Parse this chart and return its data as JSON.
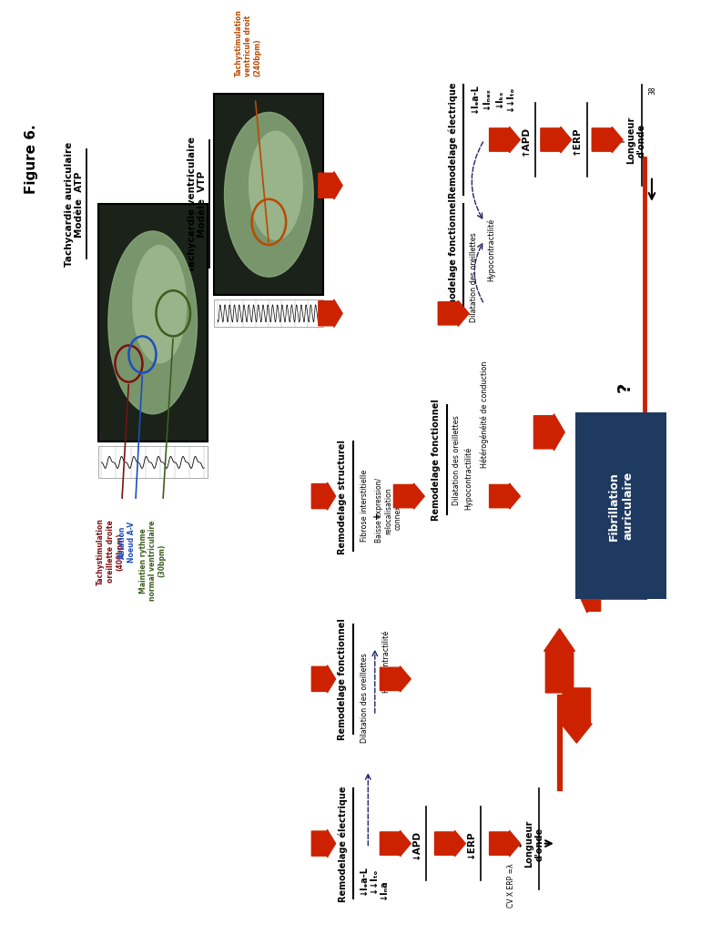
{
  "bg_color": "#ffffff",
  "fig_width": 7.51,
  "fig_height": 10.04,
  "title": "Figure 6.",
  "subtitle_left": "Tachycardie auriculaire\nModèle  ATP",
  "subtitle_right": "Tachycardie ventriculaire\nModèle  VTP",
  "label_orange": "Tachystimulation\nventricule droit\n(240bpm)",
  "label_dark_red": "Tachystimulation\noreillette droite\n(400bpm)",
  "label_blue": "Ablation\nNoeud A-V",
  "label_green": "Maintien rythme\nnormal ventriculaire\n(30bpm)",
  "color_orange": "#B84A00",
  "color_dark_red": "#7B1010",
  "color_blue": "#1A4FBF",
  "color_green": "#3B5E1E",
  "color_red": "#CC2200",
  "color_box": "#1E3A60",
  "color_box_text": "#ffffff",
  "color_black": "#000000",
  "remo_elec_left": "Remodelage électrique",
  "remo_fonc_left": "Remodelage fonctionnel",
  "remo_elec_right": "Remodelage électrique",
  "remo_fonc_right": "Remodelage fonctionnel",
  "remo_struct": "Remodelage structurel",
  "box_text": "Fibrillation\nauriculaire",
  "ica_l": "↓Iₑa-L",
  "ito_left": "↓↓Iₜₒ",
  "ina": "↓Iₙa",
  "apd_left": "↓APD",
  "erp_left": "↓ERP",
  "cv_erp": "CV X ERP =λ",
  "longueur_left": "↓\nLongueur\nd'onde",
  "ica_l_r": "↓Iₑa-L",
  "incx": "↓Iₙₑₓ",
  "iks": "↓Iₖₛ",
  "ito_right": "↓↓Iₜₒ",
  "apd_right": "↑APD",
  "erp_right": "↑ERP",
  "longueur_right": "↑\nLongueur\nd'onde",
  "dilatation_left": "Dilatation des oreillettes",
  "hypo_left": "Hypocontractilité",
  "fibrose": "Fibrose interstitielle",
  "baisse": "Baisse expression/\nrelocalisation\nconnexines",
  "plus": "+",
  "dilatation_right": "Dilatation des oreillettes",
  "hypo_right": "Hypocontractilité",
  "heterogeneite": "Hétérogénéité de conduction",
  "question": "?",
  "ref38": "38"
}
